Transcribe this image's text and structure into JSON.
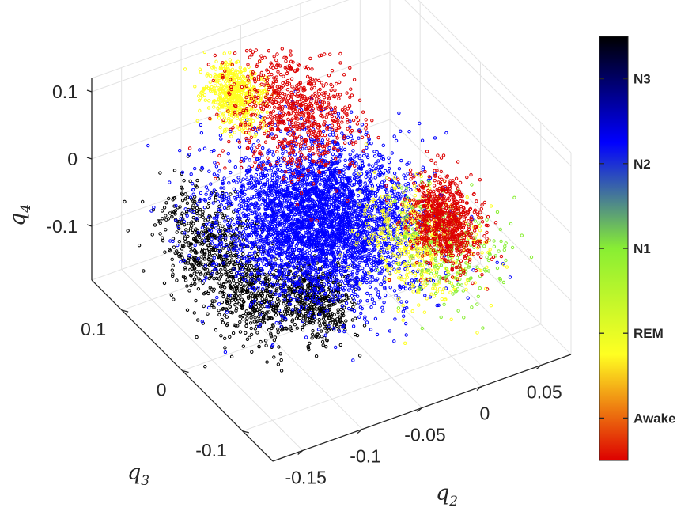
{
  "chart_data": {
    "type": "scatter",
    "dimensions": 3,
    "title": "",
    "axes": {
      "x": {
        "label": "q",
        "label_subscript": "2",
        "ticks": [
          "-0.15",
          "-0.1",
          "-0.05",
          "0",
          "0.05"
        ],
        "tick_values": [
          -0.15,
          -0.1,
          -0.05,
          0,
          0.05
        ],
        "range": [
          -0.175,
          0.075
        ]
      },
      "y": {
        "label": "q",
        "label_subscript": "3",
        "ticks": [
          "-0.1",
          "0",
          "0.1"
        ],
        "tick_values": [
          -0.1,
          0,
          0.1
        ],
        "range": [
          -0.15,
          0.15
        ]
      },
      "z": {
        "label": "q",
        "label_subscript": "4",
        "ticks": [
          "-0.1",
          "0",
          "0.1"
        ],
        "tick_values": [
          -0.1,
          0,
          0.1
        ],
        "range": [
          -0.18,
          0.12
        ]
      }
    },
    "grid": true,
    "colorbar": {
      "position": "right",
      "labels": [
        "N3",
        "N2",
        "N1",
        "REM",
        "Awake"
      ],
      "stops": [
        {
          "label": "Awake",
          "color": "#dd0000"
        },
        {
          "label": "REM",
          "color": "#ffff22"
        },
        {
          "label": "N1",
          "color": "#88ee33"
        },
        {
          "label": "N2",
          "color": "#0000ff"
        },
        {
          "label": "N3",
          "color": "#000000"
        }
      ]
    },
    "series": [
      {
        "name": "N3",
        "color": "#000000",
        "count": 1400,
        "clusters": [
          {
            "center": [
              -0.14,
              0.03,
              -0.04
            ],
            "spread": [
              0.015,
              0.03,
              0.03
            ]
          },
          {
            "center": [
              -0.125,
              -0.02,
              -0.08
            ],
            "spread": [
              0.015,
              0.03,
              0.025
            ]
          },
          {
            "center": [
              -0.095,
              -0.06,
              -0.07
            ],
            "spread": [
              0.012,
              0.02,
              0.02
            ]
          }
        ]
      },
      {
        "name": "N2",
        "color": "#0000ff",
        "count": 3800,
        "clusters": [
          {
            "center": [
              -0.06,
              0.0,
              -0.03
            ],
            "spread": [
              0.035,
              0.045,
              0.035
            ]
          }
        ]
      },
      {
        "name": "REM",
        "color": "#ffff22",
        "count": 1100,
        "clusters": [
          {
            "center": [
              0.01,
              -0.03,
              -0.08
            ],
            "spread": [
              0.018,
              0.03,
              0.03
            ]
          },
          {
            "center": [
              -0.08,
              0.1,
              0.08
            ],
            "spread": [
              0.01,
              0.015,
              0.02
            ]
          }
        ]
      },
      {
        "name": "N1",
        "color": "#88ee33",
        "count": 250,
        "clusters": [
          {
            "center": [
              0.02,
              -0.05,
              -0.07
            ],
            "spread": [
              0.018,
              0.03,
              0.03
            ]
          }
        ]
      },
      {
        "name": "Awake",
        "color": "#dd0000",
        "count": 1500,
        "clusters": [
          {
            "center": [
              -0.04,
              0.08,
              0.05
            ],
            "spread": [
              0.02,
              0.035,
              0.035
            ]
          },
          {
            "center": [
              0.03,
              -0.03,
              -0.06
            ],
            "spread": [
              0.01,
              0.02,
              0.03
            ]
          }
        ]
      }
    ]
  }
}
